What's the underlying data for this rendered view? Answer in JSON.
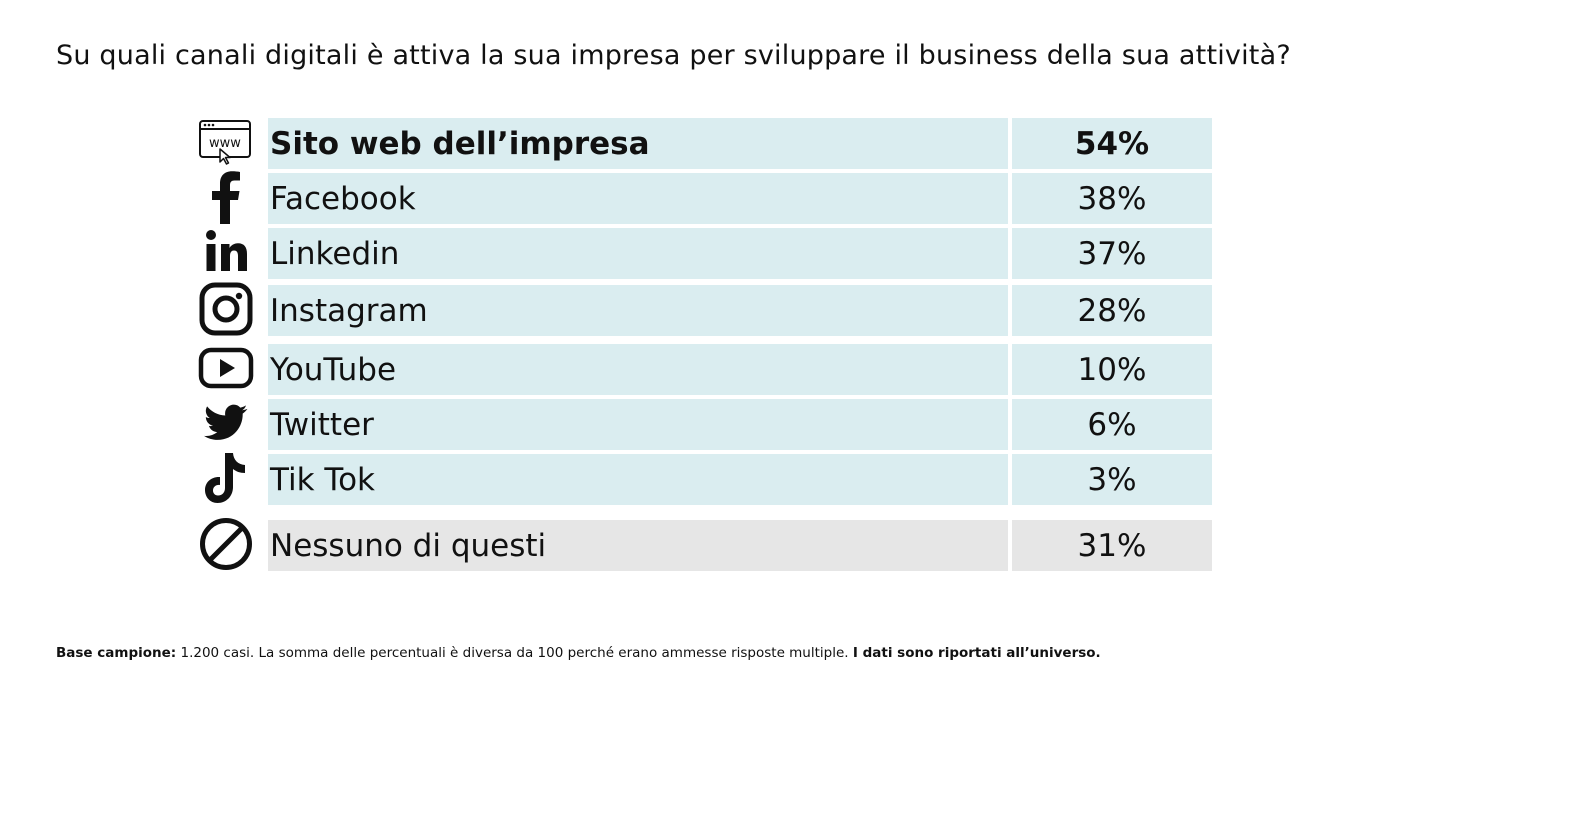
{
  "question": "Su quali canali digitali è attiva la sua impresa per sviluppare il business della sua attività?",
  "colors": {
    "row_fill": "#daedf0",
    "none_row_fill": "#e6e6e6",
    "text": "#111111"
  },
  "chart_data": {
    "type": "table",
    "columns": [
      "",
      ""
    ],
    "rows": [
      {
        "label": "Sito web dell’impresa",
        "value": "54%",
        "icon": "www-icon",
        "emphasis": true
      },
      {
        "label": "Facebook",
        "value": "38%",
        "icon": "facebook-icon",
        "emphasis": false
      },
      {
        "label": "Linkedin",
        "value": "37%",
        "icon": "linkedin-icon",
        "emphasis": false
      },
      {
        "label": "Instagram",
        "value": "28%",
        "icon": "instagram-icon",
        "emphasis": false
      },
      {
        "label": "YouTube",
        "value": "10%",
        "icon": "youtube-icon",
        "emphasis": false
      },
      {
        "label": "Twitter",
        "value": "6%",
        "icon": "twitter-icon",
        "emphasis": false
      },
      {
        "label": "Tik Tok",
        "value": "3%",
        "icon": "tiktok-icon",
        "emphasis": false
      },
      {
        "label": "Nessuno di questi",
        "value": "31%",
        "icon": "none-icon",
        "emphasis": false
      }
    ]
  },
  "footnote": {
    "base_label": "Base campione:",
    "base_text": " 1.200 casi. La somma delle percentuali è diversa da 100 perché erano ammesse risposte multiple. ",
    "universe_note": "I dati sono riportati all’universo."
  }
}
